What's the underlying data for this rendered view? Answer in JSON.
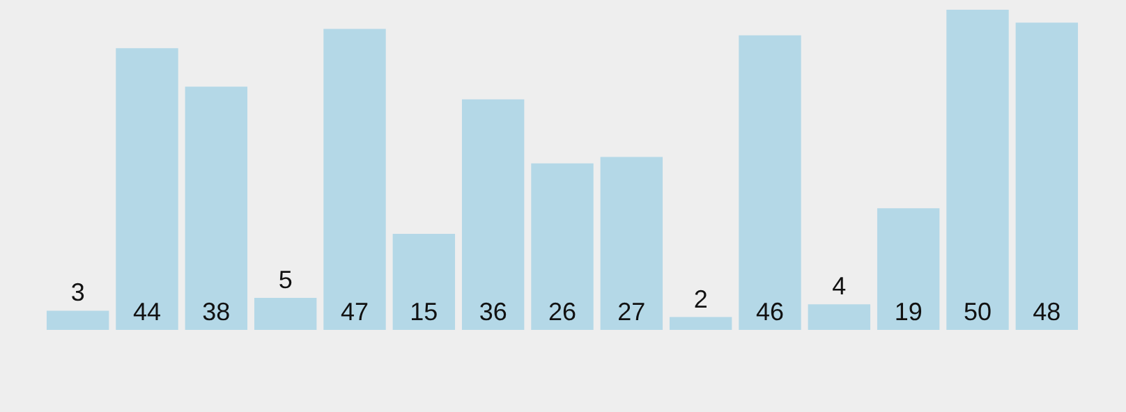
{
  "chart_data": {
    "type": "bar",
    "categories": [
      null,
      null,
      null,
      null,
      null,
      null,
      null,
      null,
      null,
      null,
      null,
      null,
      null,
      null,
      null
    ],
    "values": [
      3,
      44,
      38,
      5,
      47,
      15,
      36,
      26,
      27,
      2,
      46,
      4,
      19,
      50,
      48
    ],
    "color": "#b4d8e7",
    "data_labels": true
  }
}
